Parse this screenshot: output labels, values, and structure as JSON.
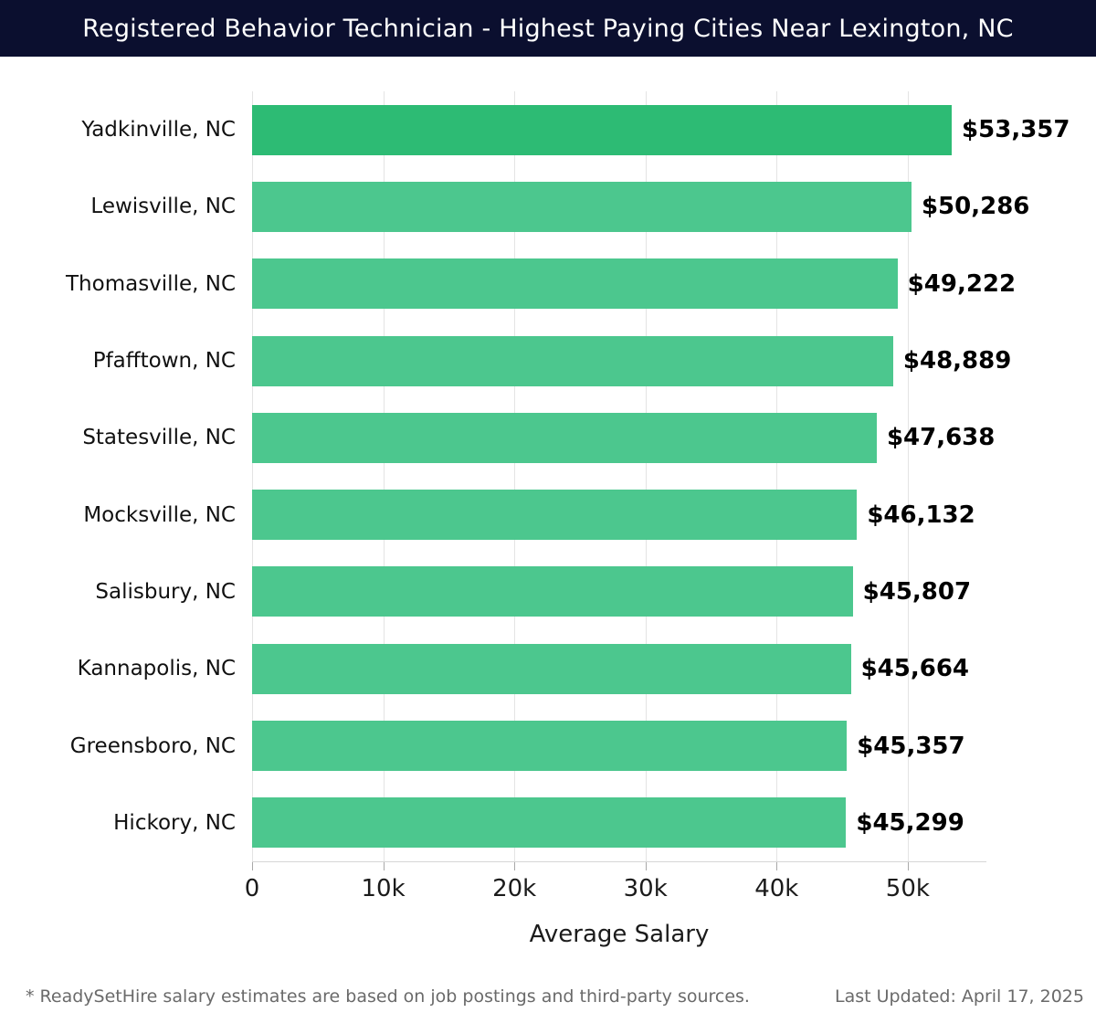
{
  "header": {
    "title": "Registered Behavior Technician - Highest Paying Cities Near Lexington, NC",
    "bg_color": "#0b0f2f",
    "text_color": "#ffffff"
  },
  "chart_data": {
    "type": "bar",
    "orientation": "horizontal",
    "title": "Registered Behavior Technician - Highest Paying Cities Near Lexington, NC",
    "categories": [
      "Yadkinville, NC",
      "Lewisville, NC",
      "Thomasville, NC",
      "Pfafftown, NC",
      "Statesville, NC",
      "Mocksville, NC",
      "Salisbury, NC",
      "Kannapolis, NC",
      "Greensboro, NC",
      "Hickory, NC"
    ],
    "values": [
      53357,
      50286,
      49222,
      48889,
      47638,
      46132,
      45807,
      45664,
      45357,
      45299
    ],
    "value_labels": [
      "$53,357",
      "$50,286",
      "$49,222",
      "$48,889",
      "$47,638",
      "$46,132",
      "$45,807",
      "$45,664",
      "$45,357",
      "$45,299"
    ],
    "xlabel": "Average Salary",
    "ylabel": "",
    "xlim": [
      0,
      56000
    ],
    "x_ticks": [
      {
        "value": 0,
        "label": "0"
      },
      {
        "value": 10000,
        "label": "10k"
      },
      {
        "value": 20000,
        "label": "20k"
      },
      {
        "value": 30000,
        "label": "30k"
      },
      {
        "value": 40000,
        "label": "40k"
      },
      {
        "value": 50000,
        "label": "50k"
      }
    ],
    "grid": true,
    "legend": false,
    "bar_color": "#4cc78e",
    "bar_color_highlight": "#2dbb74",
    "grid_color": "#e4e4e4"
  },
  "footer": {
    "note": "* ReadySetHire salary estimates are based on job postings and third-party sources.",
    "last_updated": "Last Updated: April 17, 2025"
  }
}
